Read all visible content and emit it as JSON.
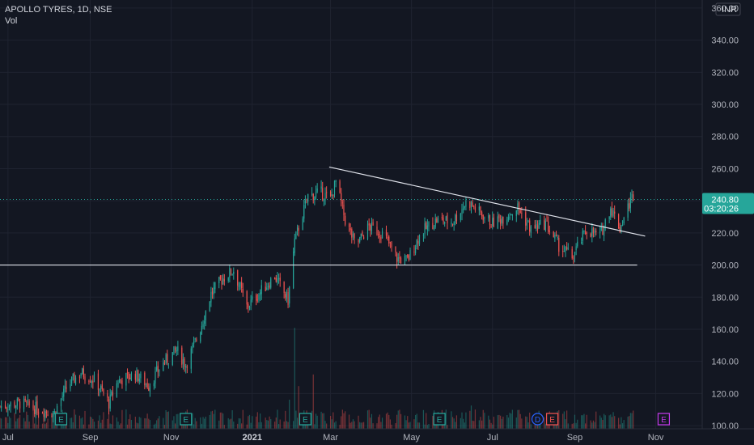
{
  "header": {
    "symbol_line": "APOLLO TYRES, 1D, NSE",
    "indicator": "Vol"
  },
  "price_axis": {
    "currency": "INR",
    "ticks": [
      "100.00",
      "120.00",
      "140.00",
      "160.00",
      "180.00",
      "200.00",
      "220.00",
      "240.00",
      "260.00",
      "280.00",
      "300.00",
      "320.00",
      "340.00",
      "360.00"
    ]
  },
  "last_price": {
    "value": "240.80",
    "countdown": "03:20:26"
  },
  "colors": {
    "background": "#131722",
    "up": "#26a69a",
    "down": "#ef5350",
    "grid": "#1f2330",
    "trendline": "#e0e3eb",
    "dividend": "#2962ff",
    "event_future": "#c239e8"
  },
  "chart_data": {
    "type": "candlestick",
    "title": "APOLLO TYRES, 1D, NSE",
    "ylim": [
      95,
      365
    ],
    "x_ticks": [
      {
        "label": "Jul",
        "date": "2020-07-01",
        "bold": false
      },
      {
        "label": "Sep",
        "date": "2020-09-01",
        "bold": false
      },
      {
        "label": "Nov",
        "date": "2020-11-01",
        "bold": false
      },
      {
        "label": "2021",
        "date": "2021-01-01",
        "bold": true
      },
      {
        "label": "Mar",
        "date": "2021-03-01",
        "bold": false
      },
      {
        "label": "May",
        "date": "2021-05-01",
        "bold": false
      },
      {
        "label": "Jul",
        "date": "2021-07-01",
        "bold": false
      },
      {
        "label": "Sep",
        "date": "2021-09-01",
        "bold": false
      },
      {
        "label": "Nov",
        "date": "2021-11-01",
        "bold": false
      }
    ],
    "x_range": [
      "2020-06-25",
      "2021-12-06"
    ],
    "price_path": [
      [
        "2020-06-25",
        112
      ],
      [
        "2020-07-10",
        114
      ],
      [
        "2020-07-25",
        110
      ],
      [
        "2020-08-05",
        108
      ],
      [
        "2020-08-15",
        125
      ],
      [
        "2020-08-25",
        133
      ],
      [
        "2020-09-05",
        128
      ],
      [
        "2020-09-15",
        114
      ],
      [
        "2020-09-22",
        128
      ],
      [
        "2020-10-05",
        132
      ],
      [
        "2020-10-15",
        125
      ],
      [
        "2020-10-25",
        138
      ],
      [
        "2020-11-05",
        147
      ],
      [
        "2020-11-12",
        138
      ],
      [
        "2020-11-22",
        158
      ],
      [
        "2020-12-01",
        182
      ],
      [
        "2020-12-10",
        192
      ],
      [
        "2020-12-18",
        197
      ],
      [
        "2020-12-28",
        174
      ],
      [
        "2021-01-08",
        184
      ],
      [
        "2021-01-18",
        193
      ],
      [
        "2021-01-28",
        178
      ],
      [
        "2021-02-02",
        215
      ],
      [
        "2021-02-12",
        243
      ],
      [
        "2021-02-22",
        245
      ],
      [
        "2021-03-01",
        241
      ],
      [
        "2021-03-05",
        252
      ],
      [
        "2021-03-12",
        228
      ],
      [
        "2021-03-20",
        212
      ],
      [
        "2021-03-30",
        224
      ],
      [
        "2021-04-10",
        219
      ],
      [
        "2021-04-20",
        204
      ],
      [
        "2021-04-28",
        203
      ],
      [
        "2021-05-08",
        220
      ],
      [
        "2021-05-20",
        228
      ],
      [
        "2021-06-01",
        227
      ],
      [
        "2021-06-12",
        240
      ],
      [
        "2021-06-22",
        232
      ],
      [
        "2021-07-01",
        226
      ],
      [
        "2021-07-12",
        231
      ],
      [
        "2021-07-20",
        236
      ],
      [
        "2021-07-30",
        222
      ],
      [
        "2021-08-10",
        226
      ],
      [
        "2021-08-20",
        212
      ],
      [
        "2021-08-30",
        205
      ],
      [
        "2021-09-10",
        222
      ],
      [
        "2021-09-20",
        218
      ],
      [
        "2021-09-28",
        236
      ],
      [
        "2021-10-05",
        223
      ],
      [
        "2021-10-12",
        238
      ],
      [
        "2021-10-15",
        244
      ]
    ],
    "volume_spikes": [
      {
        "date": "2021-02-02",
        "value": 52
      },
      {
        "date": "2021-02-05",
        "value": 22
      },
      {
        "date": "2021-02-16",
        "value": 28
      },
      {
        "date": "2021-01-29",
        "value": 15
      },
      {
        "date": "2020-08-20",
        "value": 10
      },
      {
        "date": "2020-11-12",
        "value": 9
      },
      {
        "date": "2021-06-15",
        "value": 12
      },
      {
        "date": "2021-09-24",
        "value": 7
      }
    ],
    "trendlines": [
      {
        "name": "support",
        "from": [
          "2020-06-25",
          200
        ],
        "to": [
          "2021-10-18",
          200
        ]
      },
      {
        "name": "descending resistance",
        "from": [
          "2021-02-28",
          261
        ],
        "to": [
          "2021-10-24",
          218
        ]
      }
    ],
    "events": [
      {
        "type": "E",
        "date": "2020-08-10"
      },
      {
        "type": "E",
        "date": "2020-11-12"
      },
      {
        "type": "E",
        "date": "2021-02-10"
      },
      {
        "type": "E",
        "date": "2021-05-22"
      },
      {
        "type": "D",
        "date": "2021-08-04"
      },
      {
        "type": "E",
        "date": "2021-08-15"
      },
      {
        "type": "E",
        "date": "2021-11-07"
      }
    ]
  }
}
